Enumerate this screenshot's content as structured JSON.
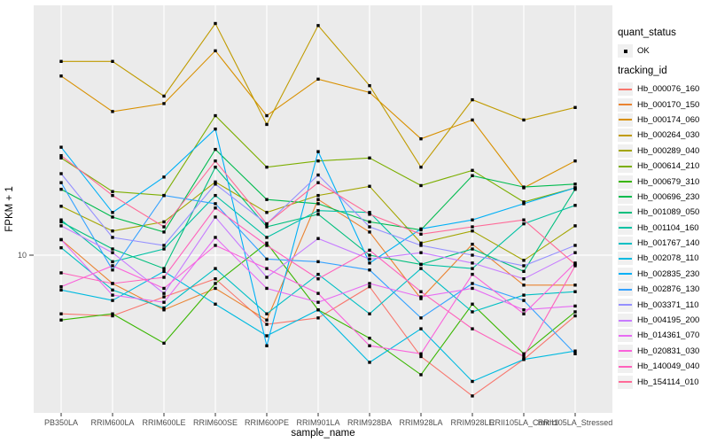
{
  "chart_data": {
    "type": "line",
    "title": "",
    "xlabel": "sample_name",
    "ylabel": "FPKM + 1",
    "y_scale": "log10",
    "y_ticks": [
      {
        "value": 10,
        "label": "10"
      }
    ],
    "ylim": [
      2.8,
      70
    ],
    "grid": "vertical-white-on-gray",
    "legend_position": "right",
    "point_marker": "small-black-square",
    "categories": [
      "PB350LA",
      "RRIM600LA",
      "RRIM600LE",
      "RRIM600SE",
      "RRIM600PE",
      "RRIM901LA",
      "RRIM928BA",
      "RRIM928LA",
      "RRIM928LE",
      "RRII105LA_Control",
      "RRII105LA_Stressed"
    ],
    "series": [
      {
        "name": "Hb_000076_160",
        "color": "#F8766D",
        "values": [
          6.3,
          6.2,
          7.2,
          8.3,
          5.8,
          6.1,
          7.8,
          4.5,
          3.3,
          4.4,
          6.2
        ]
      },
      {
        "name": "Hb_000170_150",
        "color": "#EA8331",
        "values": [
          11.3,
          8.0,
          6.5,
          7.7,
          6.0,
          15.5,
          12.0,
          7.1,
          10.9,
          7.9,
          7.9
        ]
      },
      {
        "name": "Hb_000174_060",
        "color": "#D89000",
        "values": [
          41,
          31,
          33,
          50,
          30,
          40,
          36,
          25,
          29,
          17,
          21
        ]
      },
      {
        "name": "Hb_000264_030",
        "color": "#C09B00",
        "values": [
          46,
          46,
          35,
          62,
          28,
          61,
          38,
          20,
          34,
          29,
          32
        ]
      },
      {
        "name": "Hb_000289_040",
        "color": "#A3A500",
        "values": [
          14.7,
          12.1,
          13.0,
          17.8,
          14.0,
          16.0,
          17.2,
          11.0,
          12.1,
          9.6,
          12.6
        ]
      },
      {
        "name": "Hb_000614_210",
        "color": "#7CAE00",
        "values": [
          21.5,
          16.5,
          16.0,
          30,
          20,
          21,
          21.5,
          17.3,
          19.5,
          15.2,
          17.0
        ]
      },
      {
        "name": "Hb_000679_310",
        "color": "#39B600",
        "values": [
          6.0,
          6.3,
          5.0,
          8.0,
          11.0,
          6.5,
          5.2,
          3.9,
          6.8,
          4.6,
          6.4
        ]
      },
      {
        "name": "Hb_000696_230",
        "color": "#00BB4E",
        "values": [
          16.8,
          13.5,
          12.0,
          23,
          15.5,
          15.0,
          13.0,
          12.2,
          18.7,
          17.1,
          17.5
        ]
      },
      {
        "name": "Hb_001089_050",
        "color": "#00BF7D",
        "values": [
          13.0,
          10.5,
          9.0,
          20,
          12.5,
          13.8,
          10.0,
          9.3,
          10.5,
          8.8,
          16.8
        ]
      },
      {
        "name": "Hb_001104_160",
        "color": "#00C1A3",
        "values": [
          13.2,
          9.5,
          10.5,
          16,
          11.5,
          14.2,
          14.0,
          9.3,
          9.0,
          12.8,
          14.8
        ]
      },
      {
        "name": "Hb_001767_140",
        "color": "#00BFC4",
        "values": [
          10.6,
          7.6,
          6.6,
          9.0,
          6.3,
          8.6,
          6.3,
          9.0,
          6.4,
          7.3,
          7.5
        ]
      },
      {
        "name": "Hb_002078_110",
        "color": "#00BAE0",
        "values": [
          7.6,
          7.0,
          8.8,
          6.8,
          5.3,
          6.5,
          4.3,
          5.6,
          3.7,
          4.4,
          4.7
        ]
      },
      {
        "name": "Hb_002835_230",
        "color": "#00B0F6",
        "values": [
          23.4,
          14.0,
          18.5,
          27,
          4.9,
          22.6,
          9.4,
          12.3,
          13.2,
          15.0,
          17.0
        ]
      },
      {
        "name": "Hb_002876_130",
        "color": "#35A2FF",
        "values": [
          17.7,
          8.9,
          16.0,
          15.0,
          9.7,
          9.5,
          8.9,
          6.1,
          8.0,
          7.0,
          4.6
        ]
      },
      {
        "name": "Hb_003371_110",
        "color": "#9590FF",
        "values": [
          19.0,
          11.5,
          10.8,
          17.5,
          12.8,
          18.8,
          12.5,
          10.8,
          10.0,
          9.2,
          10.8
        ]
      },
      {
        "name": "Hb_004195_200",
        "color": "#C77CFF",
        "values": [
          12.6,
          10.2,
          7.4,
          13.5,
          8.4,
          11.4,
          9.7,
          10.2,
          9.4,
          8.3,
          10.2
        ]
      },
      {
        "name": "Hb_014361_070",
        "color": "#E76BF3",
        "values": [
          11.3,
          7.3,
          6.9,
          11.5,
          7.7,
          6.9,
          8.0,
          7.2,
          7.7,
          6.5,
          6.7
        ]
      },
      {
        "name": "Hb_020831_030",
        "color": "#FA62DB",
        "values": [
          7.8,
          9.2,
          7.7,
          10.8,
          9.0,
          7.4,
          4.9,
          4.6,
          8.6,
          6.3,
          9.4
        ]
      },
      {
        "name": "Hb_140049_040",
        "color": "#FF62BC",
        "values": [
          8.7,
          8.0,
          8.4,
          14.5,
          10.8,
          8.3,
          10.4,
          7.5,
          5.6,
          4.5,
          9.2
        ]
      },
      {
        "name": "Hb_154114_010",
        "color": "#FF6A98",
        "values": [
          21.9,
          16.0,
          12.5,
          21.0,
          12.8,
          17.7,
          13.8,
          11.8,
          12.5,
          13.2,
          9.3
        ]
      }
    ]
  },
  "legend": {
    "quant_status_title": "quant_status",
    "quant_status_items": [
      {
        "label": "OK",
        "symbol": "black-point"
      }
    ],
    "tracking_id_title": "tracking_id"
  },
  "axes": {
    "x_title": "sample_name",
    "y_title": "FPKM + 1",
    "y_tick_label": "10"
  },
  "colors": {
    "panel_background": "#EBEBEB",
    "gridline": "#FFFFFF",
    "axis_text": "#4D4D4D",
    "tick_mark": "#333333",
    "point": "#000000",
    "legend_key_background": "#F0F0F0"
  }
}
